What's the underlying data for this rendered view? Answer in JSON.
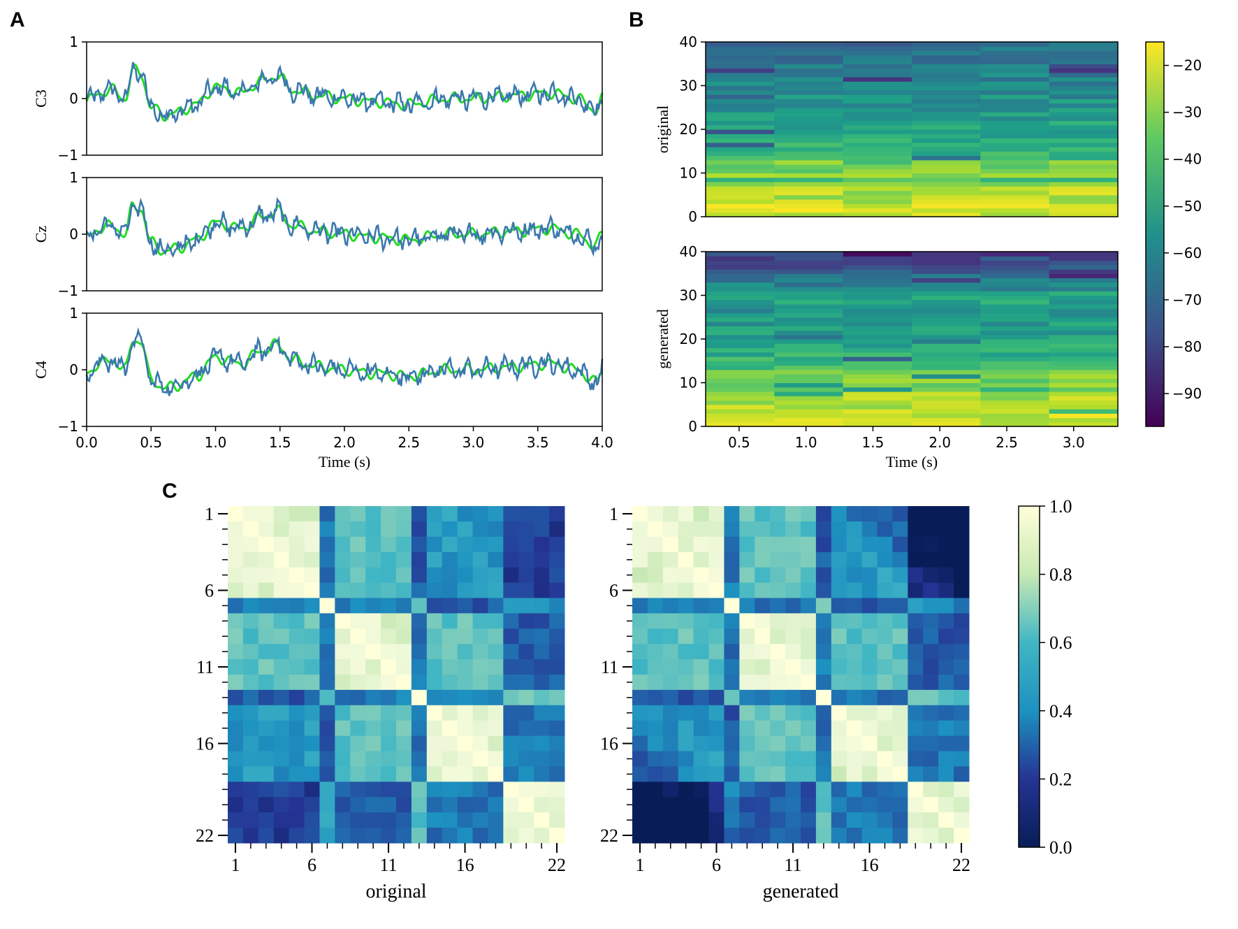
{
  "panels": {
    "a": "A",
    "b": "B",
    "c": "C"
  },
  "colors": {
    "original": "#22dd22",
    "generated": "#3a78ad"
  },
  "chart_data": [
    {
      "id": "A",
      "type": "line",
      "channels": [
        "C3",
        "Cz",
        "C4"
      ],
      "series_names": [
        "original",
        "generated"
      ],
      "x_ticks": [
        "0.0",
        "0.5",
        "1.0",
        "1.5",
        "2.0",
        "2.5",
        "3.0",
        "3.5",
        "4.0"
      ],
      "y_ticks": [
        "1",
        "0",
        "−1"
      ],
      "xlabel": "Time (s)",
      "xlim": [
        0,
        4
      ],
      "ylim": [
        -1,
        1
      ],
      "waveform_keypoints_t": [
        0,
        0.1,
        0.2,
        0.3,
        0.36,
        0.42,
        0.5,
        0.6,
        0.7,
        0.85,
        1.0,
        1.2,
        1.35,
        1.48,
        1.6,
        1.8,
        2.0,
        2.2,
        2.5,
        2.8,
        3.0,
        3.3,
        3.6,
        3.8,
        3.95,
        4.0
      ],
      "waveform_keypoints_v": [
        -0.05,
        0.1,
        0.15,
        0.0,
        0.5,
        0.45,
        -0.15,
        -0.3,
        -0.25,
        -0.1,
        0.2,
        0.1,
        0.3,
        0.4,
        0.15,
        0.05,
        0.0,
        -0.05,
        -0.1,
        0.0,
        0.0,
        0.05,
        0.1,
        0.0,
        -0.2,
        0.0
      ]
    },
    {
      "id": "B",
      "type": "heatmap",
      "rows": [
        "original",
        "generated"
      ],
      "x_ticks": [
        "0.5",
        "1.0",
        "1.5",
        "2.0",
        "2.5",
        "3.0"
      ],
      "y_ticks": [
        "40",
        "30",
        "20",
        "10",
        "0"
      ],
      "xlabel": "Time (s)",
      "xlim": [
        0.25,
        3.33
      ],
      "ylim": [
        0,
        40
      ],
      "time_bins": 6,
      "freq_bins": 40,
      "colorbar_ticks": [
        "−20",
        "−30",
        "−40",
        "−50",
        "−60",
        "−70",
        "−80",
        "−90"
      ],
      "clim": [
        -97,
        -15
      ]
    },
    {
      "id": "C",
      "type": "heatmap",
      "matrices": [
        "original",
        "generated"
      ],
      "size": 22,
      "ticks": [
        "1",
        "6",
        "11",
        "16",
        "22"
      ],
      "colorbar_ticks": [
        "1.0",
        "0.8",
        "0.6",
        "0.4",
        "0.2",
        "0.0"
      ],
      "clim": [
        0,
        1
      ]
    }
  ]
}
